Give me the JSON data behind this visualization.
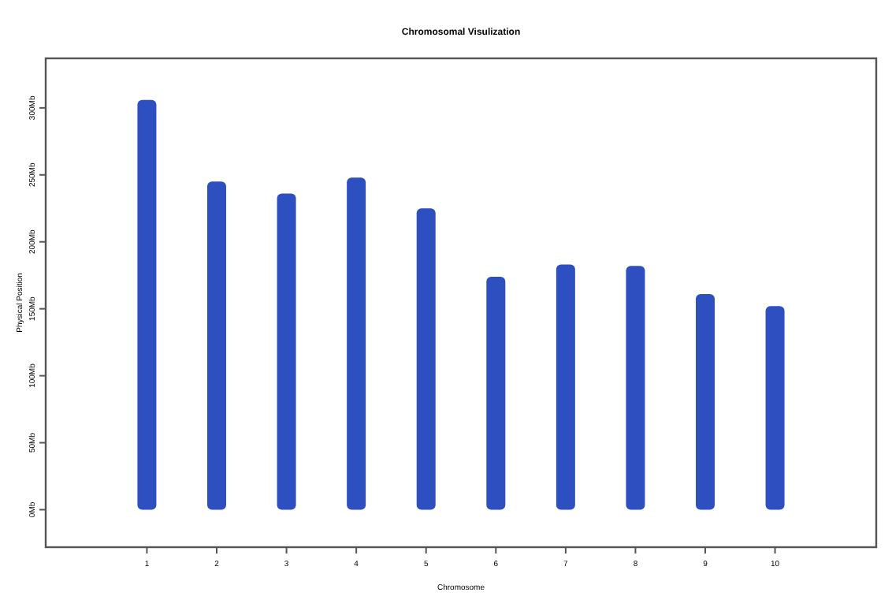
{
  "chart_data": {
    "type": "bar",
    "title": "Chromosomal Visulization",
    "xlabel": "Chromosome",
    "ylabel": "Physical Position",
    "categories": [
      "1",
      "2",
      "3",
      "4",
      "5",
      "6",
      "7",
      "8",
      "9",
      "10"
    ],
    "values": [
      306,
      245,
      236,
      248,
      225,
      174,
      183,
      182,
      161,
      152
    ],
    "color": "#2d4fc0",
    "ylim": [
      -28,
      337
    ],
    "yticks": [
      {
        "value": 0,
        "label": "0Mb"
      },
      {
        "value": 50,
        "label": "50Mb"
      },
      {
        "value": 100,
        "label": "100Mb"
      },
      {
        "value": 150,
        "label": "150Mb"
      },
      {
        "value": 200,
        "label": "200Mb"
      },
      {
        "value": 250,
        "label": "250Mb"
      },
      {
        "value": 300,
        "label": "300Mb"
      }
    ],
    "grid": false
  }
}
